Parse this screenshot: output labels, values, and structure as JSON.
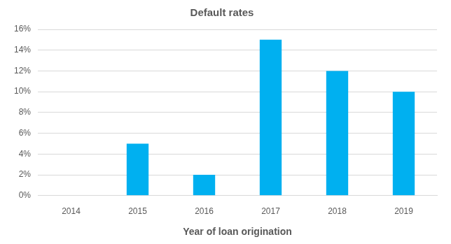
{
  "chart_data": {
    "type": "bar",
    "title": "Default rates",
    "x_label": "Year of loan origination",
    "categories": [
      "2014",
      "2015",
      "2016",
      "2017",
      "2018",
      "2019"
    ],
    "values": [
      0,
      5,
      2,
      15,
      12,
      10
    ],
    "color": "#00b0f0",
    "ylim": [
      0,
      16
    ],
    "yticks": [
      {
        "value": 0,
        "label": "0%"
      },
      {
        "value": 2,
        "label": "2%"
      },
      {
        "value": 4,
        "label": "4%"
      },
      {
        "value": 6,
        "label": "6%"
      },
      {
        "value": 8,
        "label": "8%"
      },
      {
        "value": 10,
        "label": "10%"
      },
      {
        "value": 12,
        "label": "12%"
      },
      {
        "value": 14,
        "label": "14%"
      },
      {
        "value": 16,
        "label": "16%"
      }
    ],
    "grid": true
  }
}
